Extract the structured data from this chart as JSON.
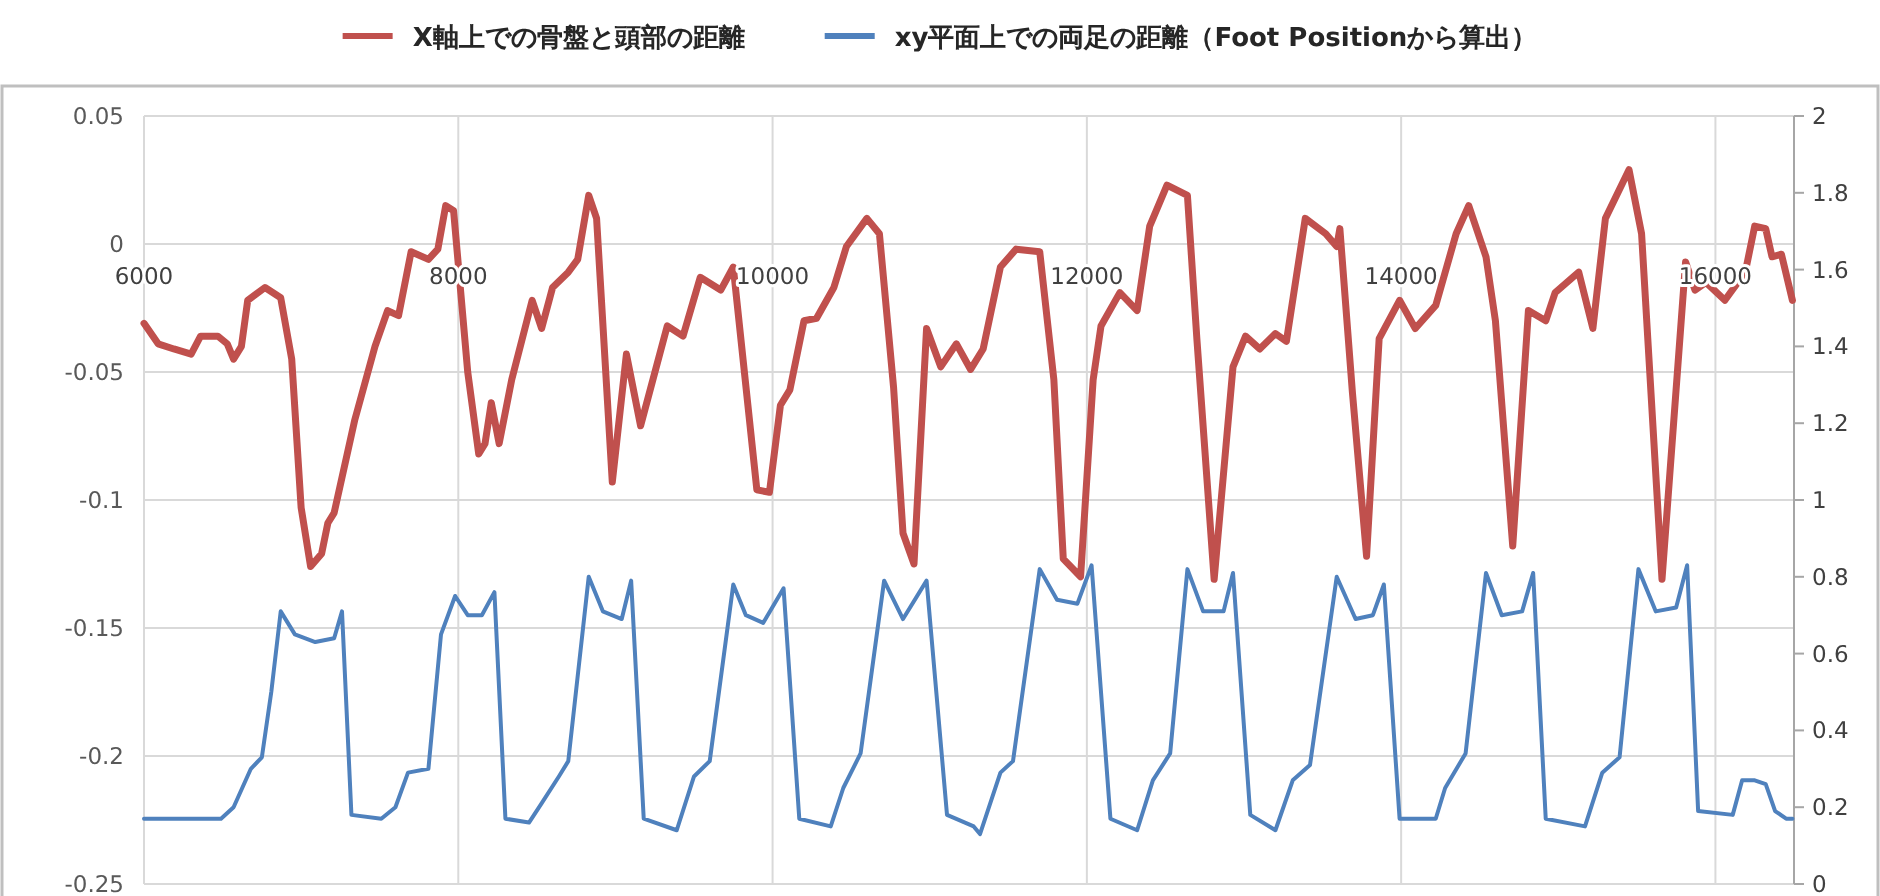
{
  "chart_data": {
    "type": "line",
    "xlim": [
      6000,
      16500
    ],
    "xticks": [
      6000,
      8000,
      10000,
      12000,
      14000,
      16000
    ],
    "ylim": [
      -0.25,
      0.05
    ],
    "yticks": [
      -0.25,
      -0.2,
      -0.15,
      -0.1,
      -0.05,
      0,
      0.05
    ],
    "y2lim": [
      0,
      2
    ],
    "y2ticks": [
      0,
      0.2,
      0.4,
      0.6,
      0.8,
      1,
      1.2,
      1.4,
      1.6,
      1.8,
      2
    ],
    "grid": true,
    "legend": "top",
    "series": [
      {
        "name": "X軸上での骨盤と頭部の距離",
        "color": "#c0504d",
        "x": [
          6000,
          6090,
          6190,
          6300,
          6360,
          6470,
          6530,
          6570,
          6620,
          6660,
          6770,
          6870,
          6940,
          7000,
          7060,
          7130,
          7170,
          7210,
          7340,
          7470,
          7550,
          7620,
          7700,
          7810,
          7870,
          7920,
          7970,
          8060,
          8130,
          8170,
          8210,
          8260,
          8340,
          8470,
          8530,
          8600,
          8700,
          8760,
          8830,
          8880,
          8980,
          9070,
          9160,
          9330,
          9430,
          9540,
          9670,
          9750,
          9900,
          9980,
          10050,
          10110,
          10200,
          10280,
          10390,
          10470,
          10600,
          10680,
          10770,
          10830,
          10900,
          10980,
          11070,
          11170,
          11260,
          11340,
          11450,
          11550,
          11700,
          11790,
          11850,
          11960,
          12040,
          12090,
          12210,
          12320,
          12400,
          12510,
          12640,
          12700,
          12810,
          12930,
          13010,
          13100,
          13200,
          13270,
          13390,
          13520,
          13590,
          13610,
          13690,
          13780,
          13860,
          13990,
          14090,
          14220,
          14350,
          14430,
          14540,
          14600,
          14710,
          14810,
          14920,
          14980,
          15130,
          15220,
          15300,
          15450,
          15530,
          15660,
          15810,
          15870,
          15940,
          16060,
          16190,
          16250,
          16320,
          16360,
          16420,
          16490
        ],
        "values": [
          -0.031,
          -0.039,
          -0.041,
          -0.043,
          -0.036,
          -0.036,
          -0.039,
          -0.045,
          -0.04,
          -0.022,
          -0.017,
          -0.021,
          -0.045,
          -0.103,
          -0.126,
          -0.121,
          -0.109,
          -0.105,
          -0.069,
          -0.04,
          -0.026,
          -0.028,
          -0.003,
          -0.006,
          -0.002,
          0.015,
          0.013,
          -0.05,
          -0.082,
          -0.078,
          -0.062,
          -0.078,
          -0.053,
          -0.022,
          -0.033,
          -0.017,
          -0.011,
          -0.006,
          0.019,
          0.01,
          -0.093,
          -0.043,
          -0.071,
          -0.032,
          -0.036,
          -0.013,
          -0.018,
          -0.009,
          -0.096,
          -0.097,
          -0.063,
          -0.057,
          -0.03,
          -0.029,
          -0.017,
          -0.001,
          0.01,
          0.004,
          -0.056,
          -0.113,
          -0.125,
          -0.033,
          -0.048,
          -0.039,
          -0.049,
          -0.041,
          -0.009,
          -0.002,
          -0.003,
          -0.053,
          -0.123,
          -0.13,
          -0.053,
          -0.032,
          -0.019,
          -0.026,
          0.007,
          0.023,
          0.019,
          -0.037,
          -0.131,
          -0.048,
          -0.036,
          -0.041,
          -0.035,
          -0.038,
          0.01,
          0.004,
          -0.001,
          0.006,
          -0.058,
          -0.122,
          -0.037,
          -0.022,
          -0.033,
          -0.024,
          0.004,
          0.015,
          -0.005,
          -0.03,
          -0.118,
          -0.026,
          -0.03,
          -0.019,
          -0.011,
          -0.033,
          0.01,
          0.029,
          0.004,
          -0.131,
          -0.007,
          -0.018,
          -0.015,
          -0.022,
          -0.011,
          0.007,
          0.006,
          -0.005,
          -0.004,
          -0.022
        ]
      },
      {
        "name": "xy平面上での両足の距離（Foot Positionから算出）",
        "color": "#4f81bd",
        "axis": "y2",
        "x": [
          6000,
          6490,
          6570,
          6680,
          6750,
          6810,
          6870,
          6960,
          7090,
          7210,
          7260,
          7320,
          7510,
          7600,
          7680,
          7810,
          7890,
          7980,
          8060,
          8150,
          8230,
          8300,
          8450,
          8530,
          8640,
          8700,
          8830,
          8920,
          9040,
          9100,
          9180,
          9390,
          9500,
          9600,
          9750,
          9830,
          9940,
          10070,
          10170,
          10370,
          10450,
          10560,
          10710,
          10830,
          10980,
          11110,
          11280,
          11320,
          11450,
          11530,
          11700,
          11810,
          11940,
          12030,
          12150,
          12320,
          12420,
          12530,
          12640,
          12740,
          12870,
          12930,
          13040,
          13200,
          13310,
          13420,
          13590,
          13710,
          13820,
          13890,
          13990,
          14220,
          14280,
          14410,
          14540,
          14640,
          14770,
          14840,
          14920,
          15170,
          15280,
          15390,
          15510,
          15620,
          15750,
          15820,
          15890,
          16110,
          16170,
          16250,
          16320,
          16380,
          16450,
          16490
        ],
        "values": [
          0.17,
          0.17,
          0.2,
          0.3,
          0.33,
          0.5,
          0.71,
          0.65,
          0.63,
          0.64,
          0.71,
          0.18,
          0.17,
          0.2,
          0.29,
          0.3,
          0.65,
          0.75,
          0.7,
          0.7,
          0.76,
          0.17,
          0.16,
          0.21,
          0.28,
          0.32,
          0.8,
          0.71,
          0.69,
          0.79,
          0.17,
          0.14,
          0.28,
          0.32,
          0.78,
          0.7,
          0.68,
          0.77,
          0.17,
          0.15,
          0.25,
          0.34,
          0.79,
          0.69,
          0.79,
          0.18,
          0.15,
          0.13,
          0.29,
          0.32,
          0.82,
          0.74,
          0.73,
          0.83,
          0.17,
          0.14,
          0.27,
          0.34,
          0.82,
          0.71,
          0.71,
          0.81,
          0.18,
          0.14,
          0.27,
          0.31,
          0.8,
          0.69,
          0.7,
          0.78,
          0.17,
          0.17,
          0.25,
          0.34,
          0.81,
          0.7,
          0.71,
          0.81,
          0.17,
          0.15,
          0.29,
          0.33,
          0.82,
          0.71,
          0.72,
          0.83,
          0.19,
          0.18,
          0.27,
          0.27,
          0.26,
          0.19,
          0.17,
          0.17
        ]
      }
    ]
  }
}
